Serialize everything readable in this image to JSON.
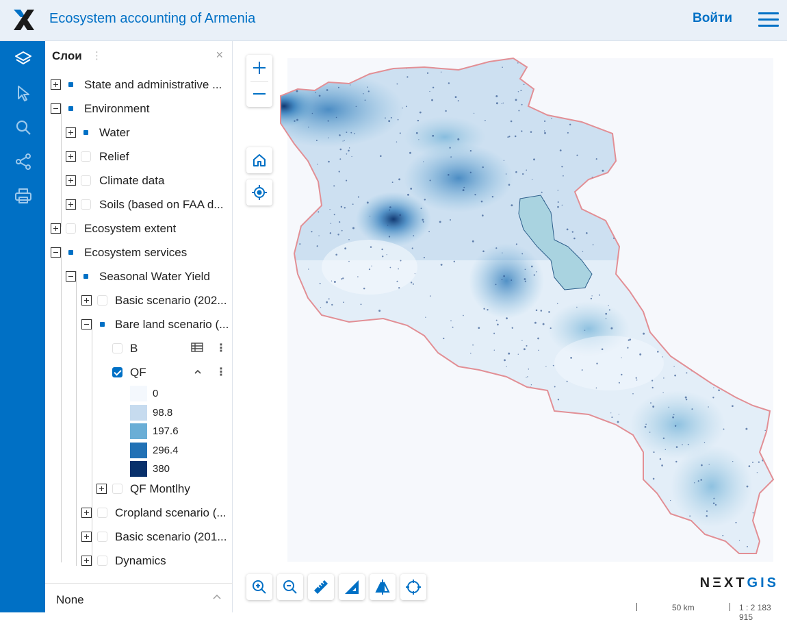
{
  "header": {
    "title": "Ecosystem accounting of Armenia",
    "login_label": "Войти",
    "logo_icon": "nextgis-x-logo",
    "menu_icon": "hamburger-menu-icon"
  },
  "rail": {
    "items": [
      {
        "name": "layers",
        "icon": "layers-icon"
      },
      {
        "name": "identify",
        "icon": "cursor-arrow-icon"
      },
      {
        "name": "search",
        "icon": "search-icon"
      },
      {
        "name": "share",
        "icon": "share-icon"
      },
      {
        "name": "print",
        "icon": "printer-icon"
      }
    ]
  },
  "layers_panel": {
    "title": "Слои",
    "menu_glyph": "⋮",
    "close_glyph": "×",
    "items": [
      {
        "label": "State and administrative ...",
        "state": "partial",
        "expander": "plus"
      },
      {
        "label": "Environment",
        "state": "partial",
        "expander": "minus"
      },
      {
        "label": "Water",
        "state": "partial",
        "expander": "plus"
      },
      {
        "label": "Relief",
        "state": "unchecked",
        "expander": "plus"
      },
      {
        "label": "Climate data",
        "state": "unchecked",
        "expander": "plus"
      },
      {
        "label": "Soils (based on FAA d...",
        "state": "unchecked",
        "expander": "plus"
      },
      {
        "label": "Ecosystem extent",
        "state": "unchecked",
        "expander": "plus"
      },
      {
        "label": "Ecosystem services",
        "state": "partial",
        "expander": "minus"
      },
      {
        "label": "Seasonal Water Yield",
        "state": "partial",
        "expander": "minus"
      },
      {
        "label": "Basic scenario (202...",
        "state": "unchecked",
        "expander": "plus"
      },
      {
        "label": "Bare land scenario (...",
        "state": "partial",
        "expander": "minus"
      },
      {
        "label": "B",
        "state": "unchecked",
        "expander": "none"
      },
      {
        "label": "QF",
        "state": "checked",
        "expander": "none"
      },
      {
        "label": "QF Montlhy",
        "state": "unchecked",
        "expander": "plus"
      },
      {
        "label": "Cropland scenario (...",
        "state": "unchecked",
        "expander": "plus"
      },
      {
        "label": "Basic scenario (201...",
        "state": "unchecked",
        "expander": "plus"
      },
      {
        "label": "Dynamics",
        "state": "unchecked",
        "expander": "plus"
      }
    ],
    "legend": [
      {
        "label": "0",
        "color": "#f4f8fd"
      },
      {
        "label": "98.8",
        "color": "#c6dbef"
      },
      {
        "label": "197.6",
        "color": "#6aaed6"
      },
      {
        "label": "296.4",
        "color": "#2171b5"
      },
      {
        "label": "380",
        "color": "#08306b"
      }
    ],
    "footer_label": "None",
    "footer_icon": "chevron-up-icon",
    "collapse_icon": "chevron-up-icon",
    "table_icon": "attribute-table-icon"
  },
  "map": {
    "zoom_in": "+",
    "zoom_out": "−",
    "brand_main": "NΞXT",
    "brand_gis": "GIS",
    "scale_distance": "50 km",
    "scale_ratio": "1 : 2 183 915",
    "toolbar_icons": [
      "zoom-in-tool-icon",
      "zoom-out-tool-icon",
      "measure-distance-icon",
      "measure-area-icon",
      "swipe-compare-icon",
      "locate-icon"
    ],
    "colors": {
      "accent": "#0070c5",
      "border": "#e28f95",
      "lake": "#a9d3e0"
    }
  }
}
